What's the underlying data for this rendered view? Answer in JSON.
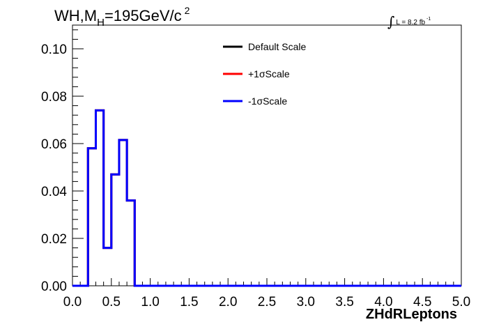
{
  "chart_data": {
    "type": "line",
    "title_parts": {
      "main": "WH,M",
      "sub": "H",
      "rest": "=195GeV/c",
      "sup": "2"
    },
    "lumi": {
      "symbol": "∫",
      "text": "L = 8.2 fb",
      "sup": "-1"
    },
    "xlabel": "ZHdRLeptons",
    "ylabel": "",
    "xlim": [
      0.0,
      5.0
    ],
    "ylim": [
      0.0,
      0.11
    ],
    "x_ticks": [
      "0.0",
      "0.5",
      "1.0",
      "1.5",
      "2.0",
      "2.5",
      "3.0",
      "3.5",
      "4.0",
      "4.5",
      "5.0"
    ],
    "y_ticks": [
      "0.00",
      "0.02",
      "0.04",
      "0.06",
      "0.08",
      "0.10"
    ],
    "bin_edges": [
      0.0,
      0.1,
      0.2,
      0.3,
      0.4,
      0.5,
      0.6,
      0.7,
      0.8,
      0.9,
      1.0,
      1.1,
      1.2,
      1.3,
      1.4,
      1.5,
      1.6,
      1.7,
      1.8,
      1.9,
      2.0,
      2.1,
      2.2,
      2.3,
      2.4,
      2.5,
      2.6,
      2.7,
      2.8,
      2.9,
      3.0,
      3.1,
      3.2,
      3.3,
      3.4,
      3.5,
      3.6,
      3.7,
      3.8,
      3.9,
      4.0,
      4.1,
      4.2,
      4.3,
      4.4,
      4.5,
      4.6,
      4.7,
      4.8,
      4.9,
      5.0
    ],
    "series": [
      {
        "name": "Default Scale",
        "color": "#000000",
        "values": [
          0,
          0,
          0.058,
          0.074,
          0.016,
          0.047,
          0.0615,
          0.036,
          0,
          0,
          0,
          0,
          0,
          0,
          0,
          0,
          0,
          0,
          0,
          0,
          0,
          0,
          0,
          0,
          0,
          0,
          0,
          0,
          0,
          0,
          0,
          0,
          0,
          0,
          0,
          0,
          0,
          0,
          0,
          0,
          0,
          0,
          0,
          0,
          0,
          0,
          0,
          0,
          0,
          0
        ]
      },
      {
        "name": "+1σScale",
        "color": "#ff0000",
        "values": [
          0,
          0,
          0.058,
          0.074,
          0.016,
          0.047,
          0.0615,
          0.036,
          0,
          0,
          0,
          0,
          0,
          0,
          0,
          0,
          0,
          0,
          0,
          0,
          0,
          0,
          0,
          0,
          0,
          0,
          0,
          0,
          0,
          0,
          0,
          0,
          0,
          0,
          0,
          0,
          0,
          0,
          0,
          0,
          0,
          0,
          0,
          0,
          0,
          0,
          0,
          0,
          0,
          0
        ]
      },
      {
        "name": "-1σScale",
        "color": "#0000ff",
        "values": [
          0,
          0,
          0.058,
          0.074,
          0.016,
          0.047,
          0.0615,
          0.036,
          0,
          0,
          0,
          0,
          0,
          0,
          0,
          0,
          0,
          0,
          0,
          0,
          0,
          0,
          0,
          0,
          0,
          0,
          0,
          0,
          0,
          0,
          0,
          0,
          0,
          0,
          0,
          0,
          0,
          0,
          0,
          0,
          0,
          0,
          0,
          0,
          0,
          0,
          0,
          0,
          0,
          0
        ]
      }
    ],
    "legend_position": "top-center",
    "grid": false
  }
}
